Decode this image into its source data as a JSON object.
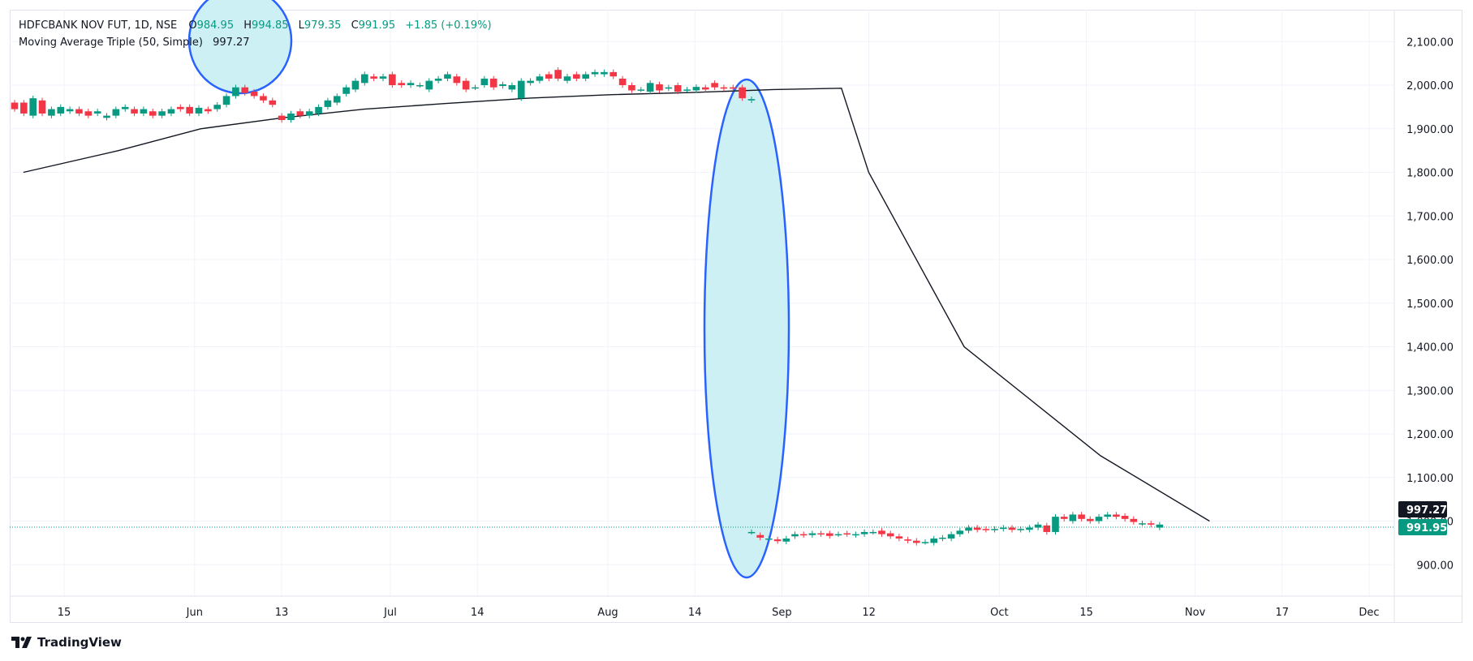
{
  "header": {
    "symbol": "HDFCBANK NOV FUT, 1D, NSE",
    "open_label": "O",
    "open": "984.95",
    "high_label": "H",
    "high": "994.85",
    "low_label": "L",
    "low": "979.35",
    "close_label": "C",
    "close": "991.95",
    "change": "+1.85 (+0.19%)"
  },
  "indicator": {
    "name": "Moving Average Triple (50, Simple)",
    "value": "997.27"
  },
  "price_badges": {
    "ma_value": "997.27",
    "last_price": "991.95"
  },
  "brand": {
    "name": "TradingView"
  },
  "colors": {
    "up": "#089981",
    "down": "#f23645",
    "ma_line": "#131722",
    "highlight_fill": "#cdf0f4",
    "highlight_stroke": "#2962ff",
    "price_line": "#089981"
  },
  "chart_data": {
    "type": "candlestick",
    "y_axis": {
      "ticks": [
        "2,100.00",
        "2,000.00",
        "1,900.00",
        "1,800.00",
        "1,700.00",
        "1,600.00",
        "1,500.00",
        "1,400.00",
        "1,300.00",
        "1,200.00",
        "1,100.00",
        "1,000.00",
        "900.00"
      ],
      "tick_values": [
        2100,
        2000,
        1900,
        1800,
        1700,
        1600,
        1500,
        1400,
        1300,
        1200,
        1100,
        1000,
        900
      ],
      "range": [
        840,
        2130
      ]
    },
    "x_axis": {
      "labels": [
        "15",
        "Jun",
        "13",
        "Jul",
        "14",
        "Aug",
        "14",
        "Sep",
        "12",
        "Oct",
        "15",
        "Nov",
        "17",
        "Dec"
      ],
      "label_index": [
        2,
        8,
        12,
        17,
        21,
        27,
        31,
        35,
        39,
        45,
        49,
        54,
        58,
        62
      ]
    },
    "candles_before_gap": [
      [
        1960,
        1945
      ],
      [
        1960,
        1935
      ],
      [
        1930,
        1970
      ],
      [
        1965,
        1935
      ],
      [
        1930,
        1945
      ],
      [
        1935,
        1950
      ],
      [
        1940,
        1945
      ],
      [
        1945,
        1935
      ],
      [
        1940,
        1930
      ],
      [
        1935,
        1940
      ],
      [
        1925,
        1930
      ],
      [
        1930,
        1945
      ],
      [
        1945,
        1950
      ],
      [
        1945,
        1935
      ],
      [
        1935,
        1945
      ],
      [
        1940,
        1930
      ],
      [
        1930,
        1940
      ],
      [
        1935,
        1945
      ],
      [
        1950,
        1945
      ],
      [
        1950,
        1935
      ],
      [
        1935,
        1948
      ],
      [
        1945,
        1940
      ],
      [
        1945,
        1955
      ],
      [
        1955,
        1975
      ],
      [
        1975,
        1995
      ],
      [
        1995,
        1982
      ],
      [
        1985,
        1975
      ],
      [
        1975,
        1965
      ],
      [
        1965,
        1955
      ],
      [
        1930,
        1920
      ],
      [
        1920,
        1935
      ],
      [
        1940,
        1930
      ],
      [
        1930,
        1940
      ],
      [
        1935,
        1950
      ],
      [
        1950,
        1965
      ],
      [
        1960,
        1975
      ],
      [
        1980,
        1995
      ],
      [
        1990,
        2010
      ],
      [
        2005,
        2025
      ],
      [
        2020,
        2015
      ],
      [
        2015,
        2020
      ],
      [
        2025,
        2000
      ],
      [
        2005,
        2000
      ],
      [
        2000,
        2005
      ],
      [
        2000,
        2000
      ],
      [
        1990,
        2010
      ],
      [
        2010,
        2015
      ],
      [
        2015,
        2025
      ],
      [
        2020,
        2005
      ],
      [
        2010,
        1990
      ],
      [
        1995,
        1995
      ],
      [
        2000,
        2015
      ],
      [
        2015,
        1995
      ],
      [
        1998,
        2002
      ],
      [
        1990,
        2000
      ],
      [
        1970,
        2010
      ],
      [
        2005,
        2010
      ],
      [
        2010,
        2020
      ],
      [
        2025,
        2015
      ],
      [
        2035,
        2015
      ],
      [
        2010,
        2020
      ],
      [
        2025,
        2015
      ],
      [
        2015,
        2025
      ],
      [
        2025,
        2030
      ],
      [
        2025,
        2030
      ],
      [
        2030,
        2020
      ],
      [
        2015,
        2000
      ],
      [
        2000,
        1988
      ],
      [
        1990,
        1990
      ],
      [
        1985,
        2005
      ],
      [
        2002,
        1988
      ],
      [
        1992,
        1995
      ],
      [
        2000,
        1985
      ],
      [
        1990,
        1990
      ],
      [
        1988,
        1996
      ],
      [
        1995,
        1990
      ],
      [
        2005,
        1995
      ],
      [
        1995,
        1992
      ],
      [
        1995,
        1992
      ],
      [
        1995,
        1970
      ],
      [
        1965,
        1968
      ]
    ],
    "candles_after_gap": [
      [
        975,
        975
      ],
      [
        968,
        962
      ],
      [
        960,
        960
      ],
      [
        958,
        954
      ],
      [
        953,
        960
      ],
      [
        965,
        970
      ],
      [
        970,
        968
      ],
      [
        968,
        972
      ],
      [
        972,
        970
      ],
      [
        972,
        966
      ],
      [
        970,
        970
      ],
      [
        972,
        970
      ],
      [
        968,
        970
      ],
      [
        970,
        975
      ],
      [
        975,
        975
      ],
      [
        978,
        970
      ],
      [
        972,
        965
      ],
      [
        965,
        960
      ],
      [
        958,
        955
      ],
      [
        955,
        950
      ],
      [
        952,
        952
      ],
      [
        950,
        960
      ],
      [
        960,
        962
      ],
      [
        960,
        970
      ],
      [
        970,
        978
      ],
      [
        978,
        985
      ],
      [
        985,
        980
      ],
      [
        982,
        980
      ],
      [
        980,
        982
      ],
      [
        982,
        985
      ],
      [
        985,
        980
      ],
      [
        980,
        982
      ],
      [
        980,
        985
      ],
      [
        985,
        992
      ],
      [
        990,
        975
      ],
      [
        975,
        1010
      ],
      [
        1010,
        1005
      ],
      [
        1000,
        1015
      ],
      [
        1015,
        1005
      ],
      [
        1005,
        1000
      ],
      [
        1000,
        1010
      ],
      [
        1010,
        1015
      ],
      [
        1015,
        1010
      ],
      [
        1012,
        1005
      ],
      [
        1005,
        998
      ],
      [
        995,
        995
      ],
      [
        995,
        992
      ],
      [
        985,
        992
      ]
    ],
    "moving_average": [
      [
        1,
        1800
      ],
      [
        8,
        1850
      ],
      [
        14,
        1900
      ],
      [
        20,
        1925
      ],
      [
        26,
        1945
      ],
      [
        32,
        1958
      ],
      [
        38,
        1970
      ],
      [
        44,
        1978
      ],
      [
        50,
        1983
      ],
      [
        56,
        1990
      ],
      [
        61,
        1993
      ],
      [
        63,
        1800
      ],
      [
        70,
        1400
      ],
      [
        80,
        1150
      ],
      [
        88,
        1000
      ]
    ],
    "last_price": 991.95,
    "ma_last": 997.27
  }
}
